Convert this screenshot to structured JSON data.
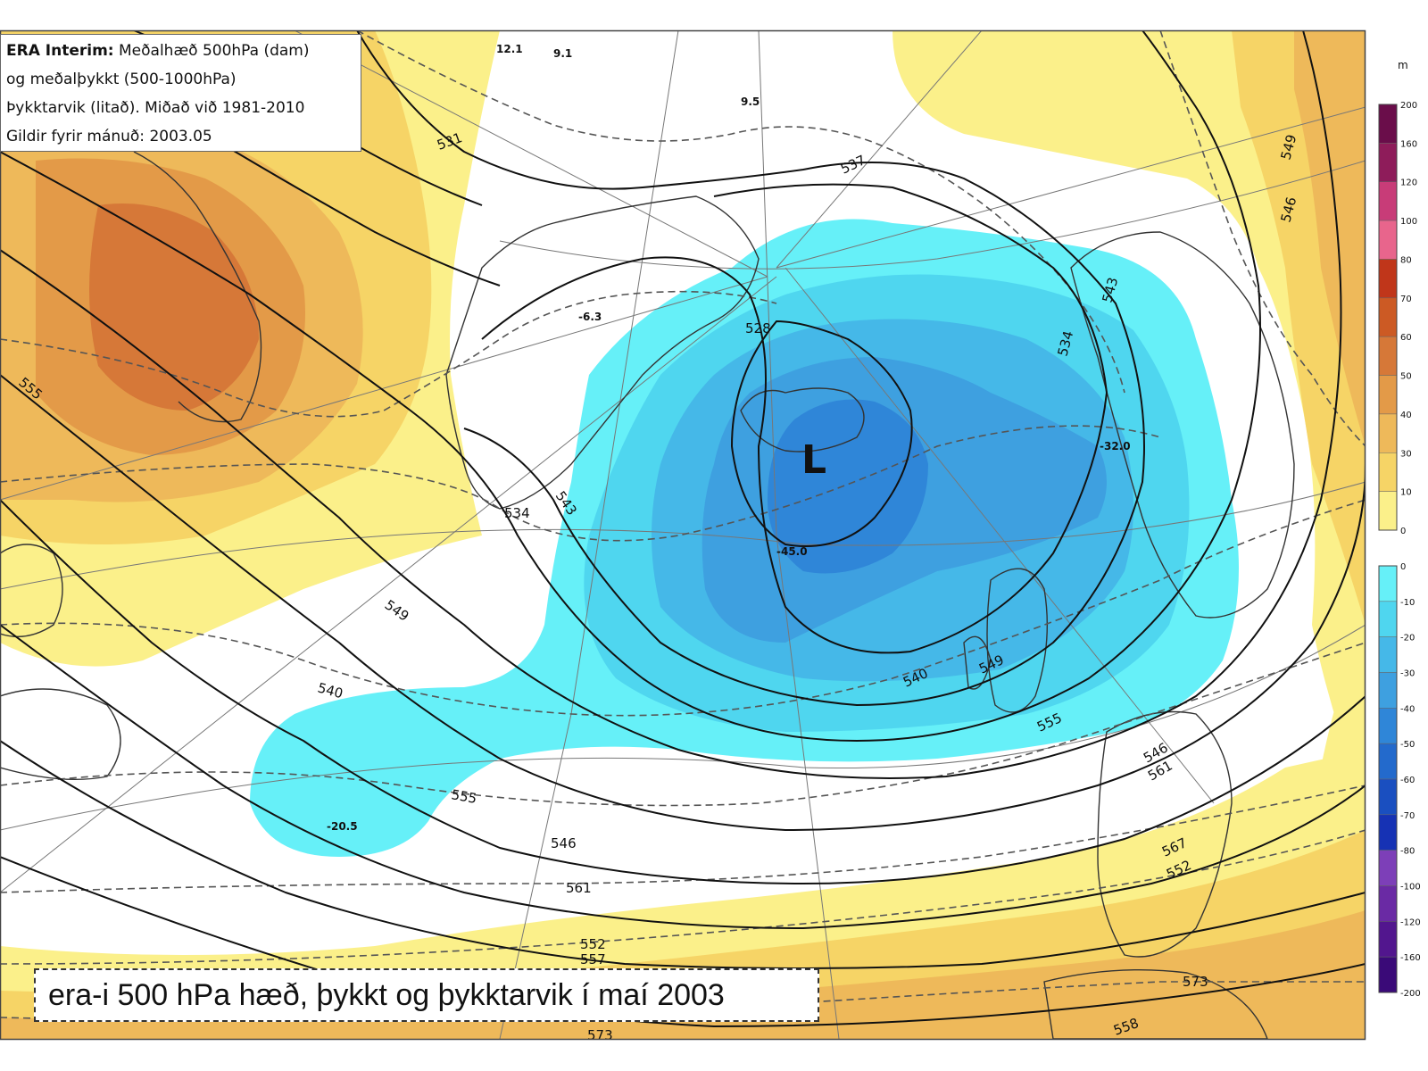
{
  "legend_box": {
    "line1_bold": "ERA Interim:",
    "line1_rest": " Meðalhæð 500hPa (dam)",
    "line2": "og meðalþykkt (500-1000hPa)",
    "line3": "Þykktarvik (litað). Miðað við 1981-2010",
    "line4": "Gildir fyrir mánuð: 2003.05"
  },
  "caption": "era-i 500 hPa hæð, þykkt og þykktarvik í maí 2003",
  "low_marker": "L",
  "colorbar": {
    "unit": "m",
    "positive": [
      {
        "label": "200",
        "color": "#6a0d4a"
      },
      {
        "label": "160",
        "color": "#8e1c5a"
      },
      {
        "label": "120",
        "color": "#c83c78"
      },
      {
        "label": "100",
        "color": "#e8658c"
      },
      {
        "label": "80",
        "color": "#c0361a"
      },
      {
        "label": "70",
        "color": "#cc5a24"
      },
      {
        "label": "60",
        "color": "#d67838"
      },
      {
        "label": "50",
        "color": "#e39a48"
      },
      {
        "label": "40",
        "color": "#eeb95a"
      },
      {
        "label": "30",
        "color": "#f6d466"
      },
      {
        "label": "10",
        "color": "#fbf08a"
      },
      {
        "label": "0",
        "color": "#ffffff"
      }
    ],
    "negative": [
      {
        "label": "0",
        "color": "#ffffff"
      },
      {
        "label": "-10",
        "color": "#66f0f8"
      },
      {
        "label": "-20",
        "color": "#4fd6ef"
      },
      {
        "label": "-30",
        "color": "#45b8e8"
      },
      {
        "label": "-40",
        "color": "#3ea0e0"
      },
      {
        "label": "-50",
        "color": "#2f86d8"
      },
      {
        "label": "-60",
        "color": "#236acc"
      },
      {
        "label": "-70",
        "color": "#1a4fc0"
      },
      {
        "label": "-80",
        "color": "#1632b4"
      },
      {
        "label": "-100",
        "color": "#7d3fb8"
      },
      {
        "label": "-120",
        "color": "#6a2aa4"
      },
      {
        "label": "-160",
        "color": "#52168e"
      },
      {
        "label": "-200",
        "color": "#3a0a78"
      }
    ]
  },
  "point_values": [
    "12.1",
    "9.1",
    "9.5",
    "-6.3",
    "-32.0",
    "-45.0",
    "-20.5"
  ],
  "height_contour_labels": [
    "531",
    "537",
    "543",
    "549",
    "555",
    "561",
    "567",
    "573",
    "528",
    "534",
    "543",
    "549",
    "555",
    "561"
  ],
  "thickness_contour_labels": [
    "534",
    "540",
    "546",
    "552",
    "558",
    "540",
    "546",
    "552",
    "555"
  ]
}
